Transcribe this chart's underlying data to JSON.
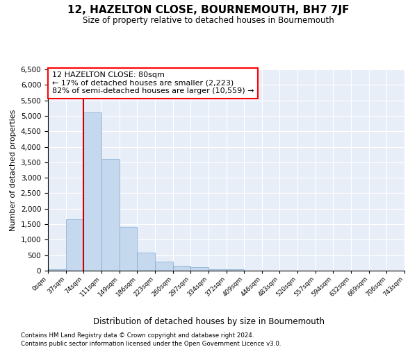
{
  "title": "12, HAZELTON CLOSE, BOURNEMOUTH, BH7 7JF",
  "subtitle": "Size of property relative to detached houses in Bournemouth",
  "xlabel": "Distribution of detached houses by size in Bournemouth",
  "ylabel": "Number of detached properties",
  "bar_color": "#c5d8ee",
  "bar_edge_color": "#7aaad0",
  "vline_color": "#cc0000",
  "vline_x": 74,
  "annotation_title": "12 HAZELTON CLOSE: 80sqm",
  "annotation_line1": "← 17% of detached houses are smaller (2,223)",
  "annotation_line2": "82% of semi-detached houses are larger (10,559) →",
  "bin_edges": [
    0,
    37,
    74,
    111,
    149,
    186,
    223,
    260,
    297,
    334,
    372,
    409,
    446,
    483,
    520,
    557,
    594,
    632,
    669,
    706,
    743
  ],
  "bin_values": [
    50,
    1650,
    5100,
    3600,
    1420,
    590,
    300,
    150,
    110,
    50,
    45,
    5,
    0,
    0,
    0,
    0,
    0,
    0,
    0,
    0
  ],
  "ylim": [
    0,
    6500
  ],
  "yticks": [
    0,
    500,
    1000,
    1500,
    2000,
    2500,
    3000,
    3500,
    4000,
    4500,
    5000,
    5500,
    6000,
    6500
  ],
  "background_color": "#e8eef8",
  "grid_color": "#ffffff",
  "footnote1": "Contains HM Land Registry data © Crown copyright and database right 2024.",
  "footnote2": "Contains public sector information licensed under the Open Government Licence v3.0."
}
